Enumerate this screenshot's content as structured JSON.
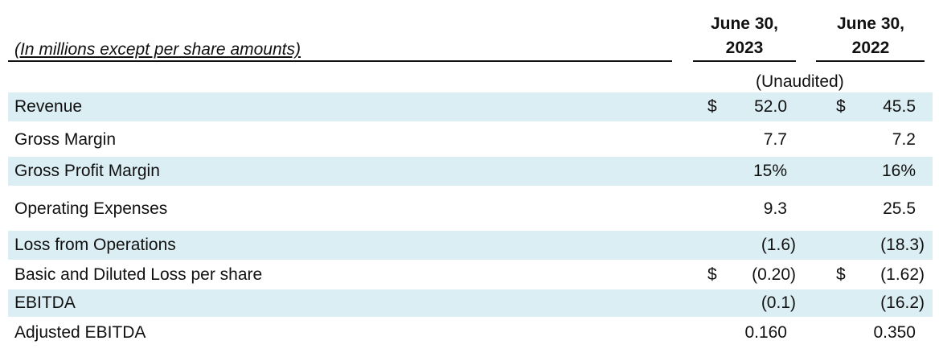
{
  "table": {
    "caption": "(In millions except per share amounts)",
    "columns": [
      {
        "line1": "June 30,",
        "line2": "2023"
      },
      {
        "line1": "June 30,",
        "line2": "2022"
      }
    ],
    "note": "(Unaudited)",
    "rows": [
      {
        "label": "Revenue",
        "cells": [
          {
            "currency": "$",
            "value": "52.0"
          },
          {
            "currency": "$",
            "value": "45.5"
          }
        ]
      },
      {
        "label": "Gross Margin",
        "cells": [
          {
            "value": "7.7"
          },
          {
            "value": "7.2"
          }
        ]
      },
      {
        "label": "Gross Profit Margin",
        "cells": [
          {
            "value": "15%"
          },
          {
            "value": "16%"
          }
        ]
      },
      {
        "label": "Operating Expenses",
        "cells": [
          {
            "value": "9.3"
          },
          {
            "value": "25.5"
          }
        ]
      },
      {
        "label": "Loss from Operations",
        "cells": [
          {
            "value": "(1.6)"
          },
          {
            "value": "(18.3)"
          }
        ]
      },
      {
        "label": "Basic and Diluted Loss per share",
        "cells": [
          {
            "currency": "$",
            "value": "(0.20)"
          },
          {
            "currency": "$",
            "value": "(1.62)"
          }
        ]
      },
      {
        "label": "EBITDA",
        "cells": [
          {
            "value": "(0.1)"
          },
          {
            "value": "(16.2)"
          }
        ]
      },
      {
        "label": "Adjusted EBITDA",
        "cells": [
          {
            "value": "0.160"
          },
          {
            "value": "0.350"
          }
        ]
      }
    ]
  }
}
